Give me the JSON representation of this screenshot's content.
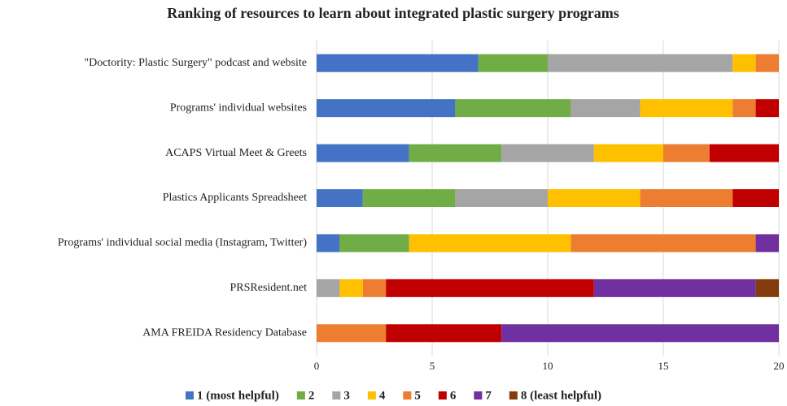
{
  "chart_data": {
    "type": "stacked_barh",
    "title": "Ranking of resources to learn about integrated plastic surgery programs",
    "categories": [
      "\"Doctority: Plastic Surgery\" podcast and website",
      "Programs' individual websites",
      "ACAPS Virtual Meet & Greets",
      "Plastics Applicants Spreadsheet",
      "Programs' individual social media (Instagram, Twitter)",
      "PRSResident.net",
      "AMA FREIDA Residency Database"
    ],
    "series": [
      {
        "name": "1 (most helpful)",
        "color": "#4472c4",
        "values": [
          7,
          6,
          4,
          2,
          1,
          0,
          0
        ]
      },
      {
        "name": "2",
        "color": "#70ad47",
        "values": [
          3,
          5,
          4,
          4,
          3,
          0,
          0
        ]
      },
      {
        "name": "3",
        "color": "#a5a5a5",
        "values": [
          8,
          3,
          4,
          4,
          0,
          1,
          0
        ]
      },
      {
        "name": "4",
        "color": "#ffc000",
        "values": [
          1,
          4,
          3,
          4,
          7,
          1,
          0
        ]
      },
      {
        "name": "5",
        "color": "#ed7d31",
        "values": [
          1,
          1,
          2,
          4,
          8,
          1,
          3
        ]
      },
      {
        "name": "6",
        "color": "#c00000",
        "values": [
          0,
          1,
          3,
          2,
          0,
          9,
          5
        ]
      },
      {
        "name": "7",
        "color": "#7030a0",
        "values": [
          0,
          0,
          0,
          0,
          1,
          7,
          12
        ]
      },
      {
        "name": "8 (least helpful)",
        "color": "#843c0c",
        "values": [
          0,
          0,
          0,
          0,
          0,
          1,
          0
        ]
      }
    ],
    "xlim": [
      0,
      20
    ],
    "xticks": [
      0,
      5,
      10,
      15,
      20
    ],
    "grid": true,
    "legend": "bottom"
  }
}
